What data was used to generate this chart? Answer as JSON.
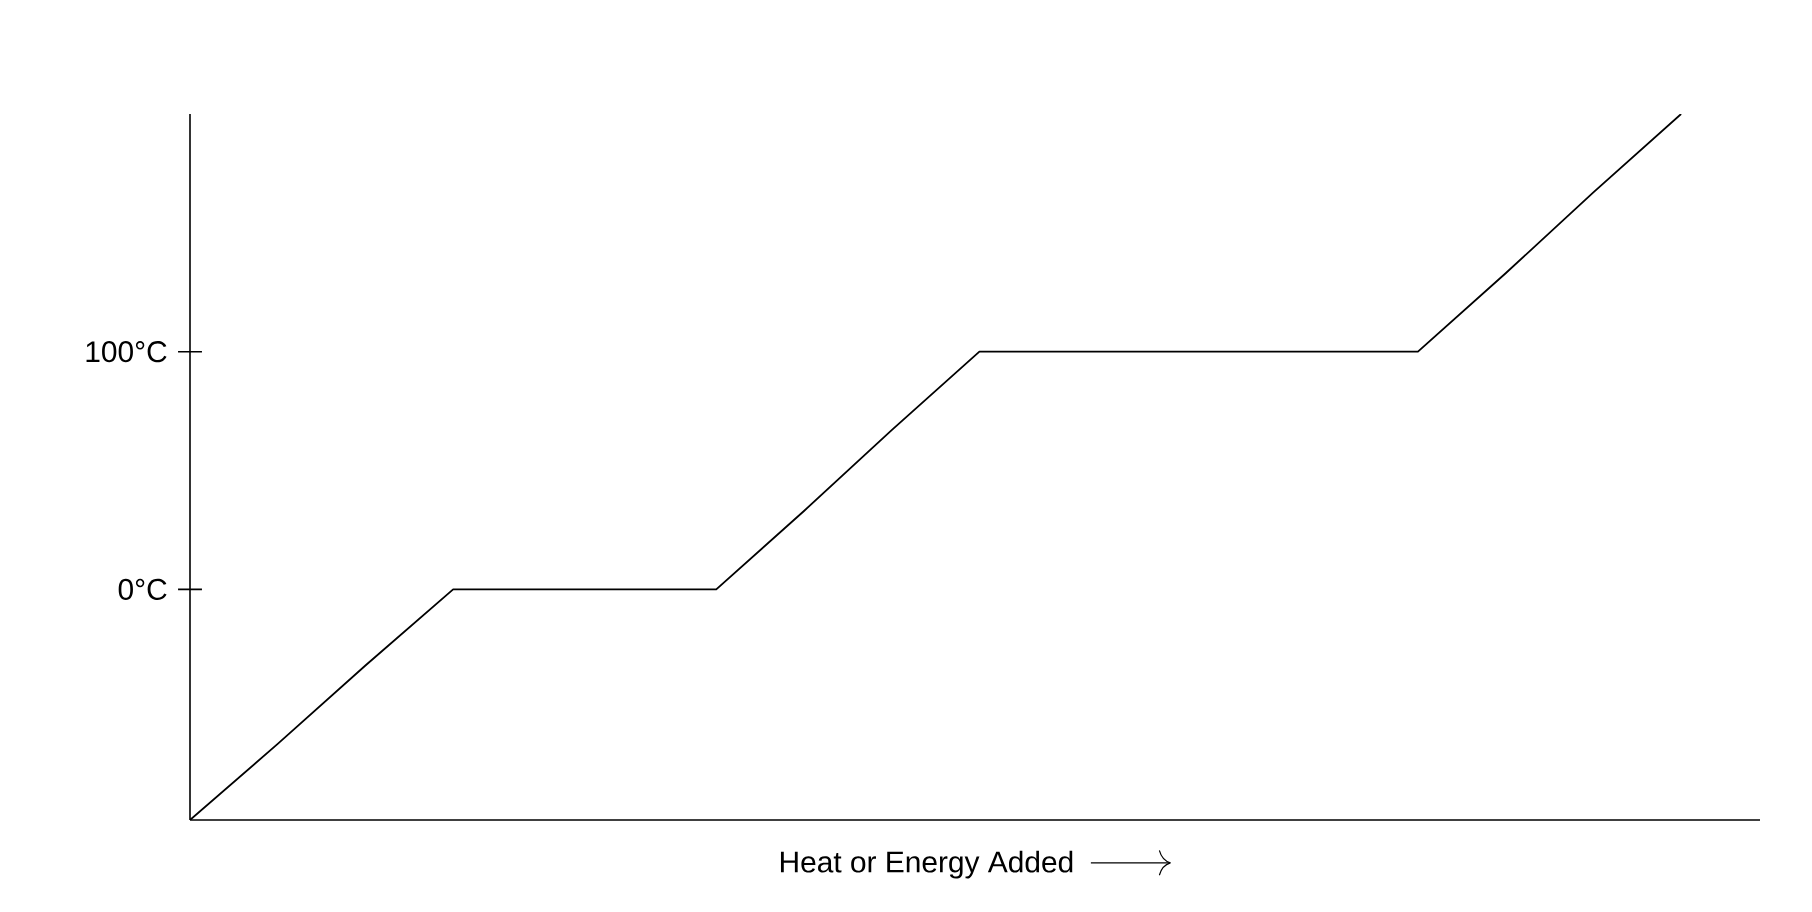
{
  "chart_data": {
    "type": "line",
    "xlabel": "Heat or Energy Added",
    "categories": [
      null,
      null,
      null,
      null,
      null,
      null,
      null,
      null,
      null,
      null,
      null,
      null,
      null,
      null,
      null,
      null,
      null,
      null
    ],
    "values": [
      -97,
      -65,
      -32,
      0,
      0,
      0,
      0,
      33,
      67,
      100,
      100,
      100,
      100,
      100,
      100,
      133,
      167,
      200
    ],
    "color": "#000000",
    "ylim": [
      -97,
      200
    ],
    "yticks": [
      {
        "value": 0,
        "label": "0°C"
      },
      {
        "value": 100,
        "label": "100°C"
      }
    ],
    "tick_labels": "y",
    "marker": "none",
    "line_style": "solid"
  }
}
